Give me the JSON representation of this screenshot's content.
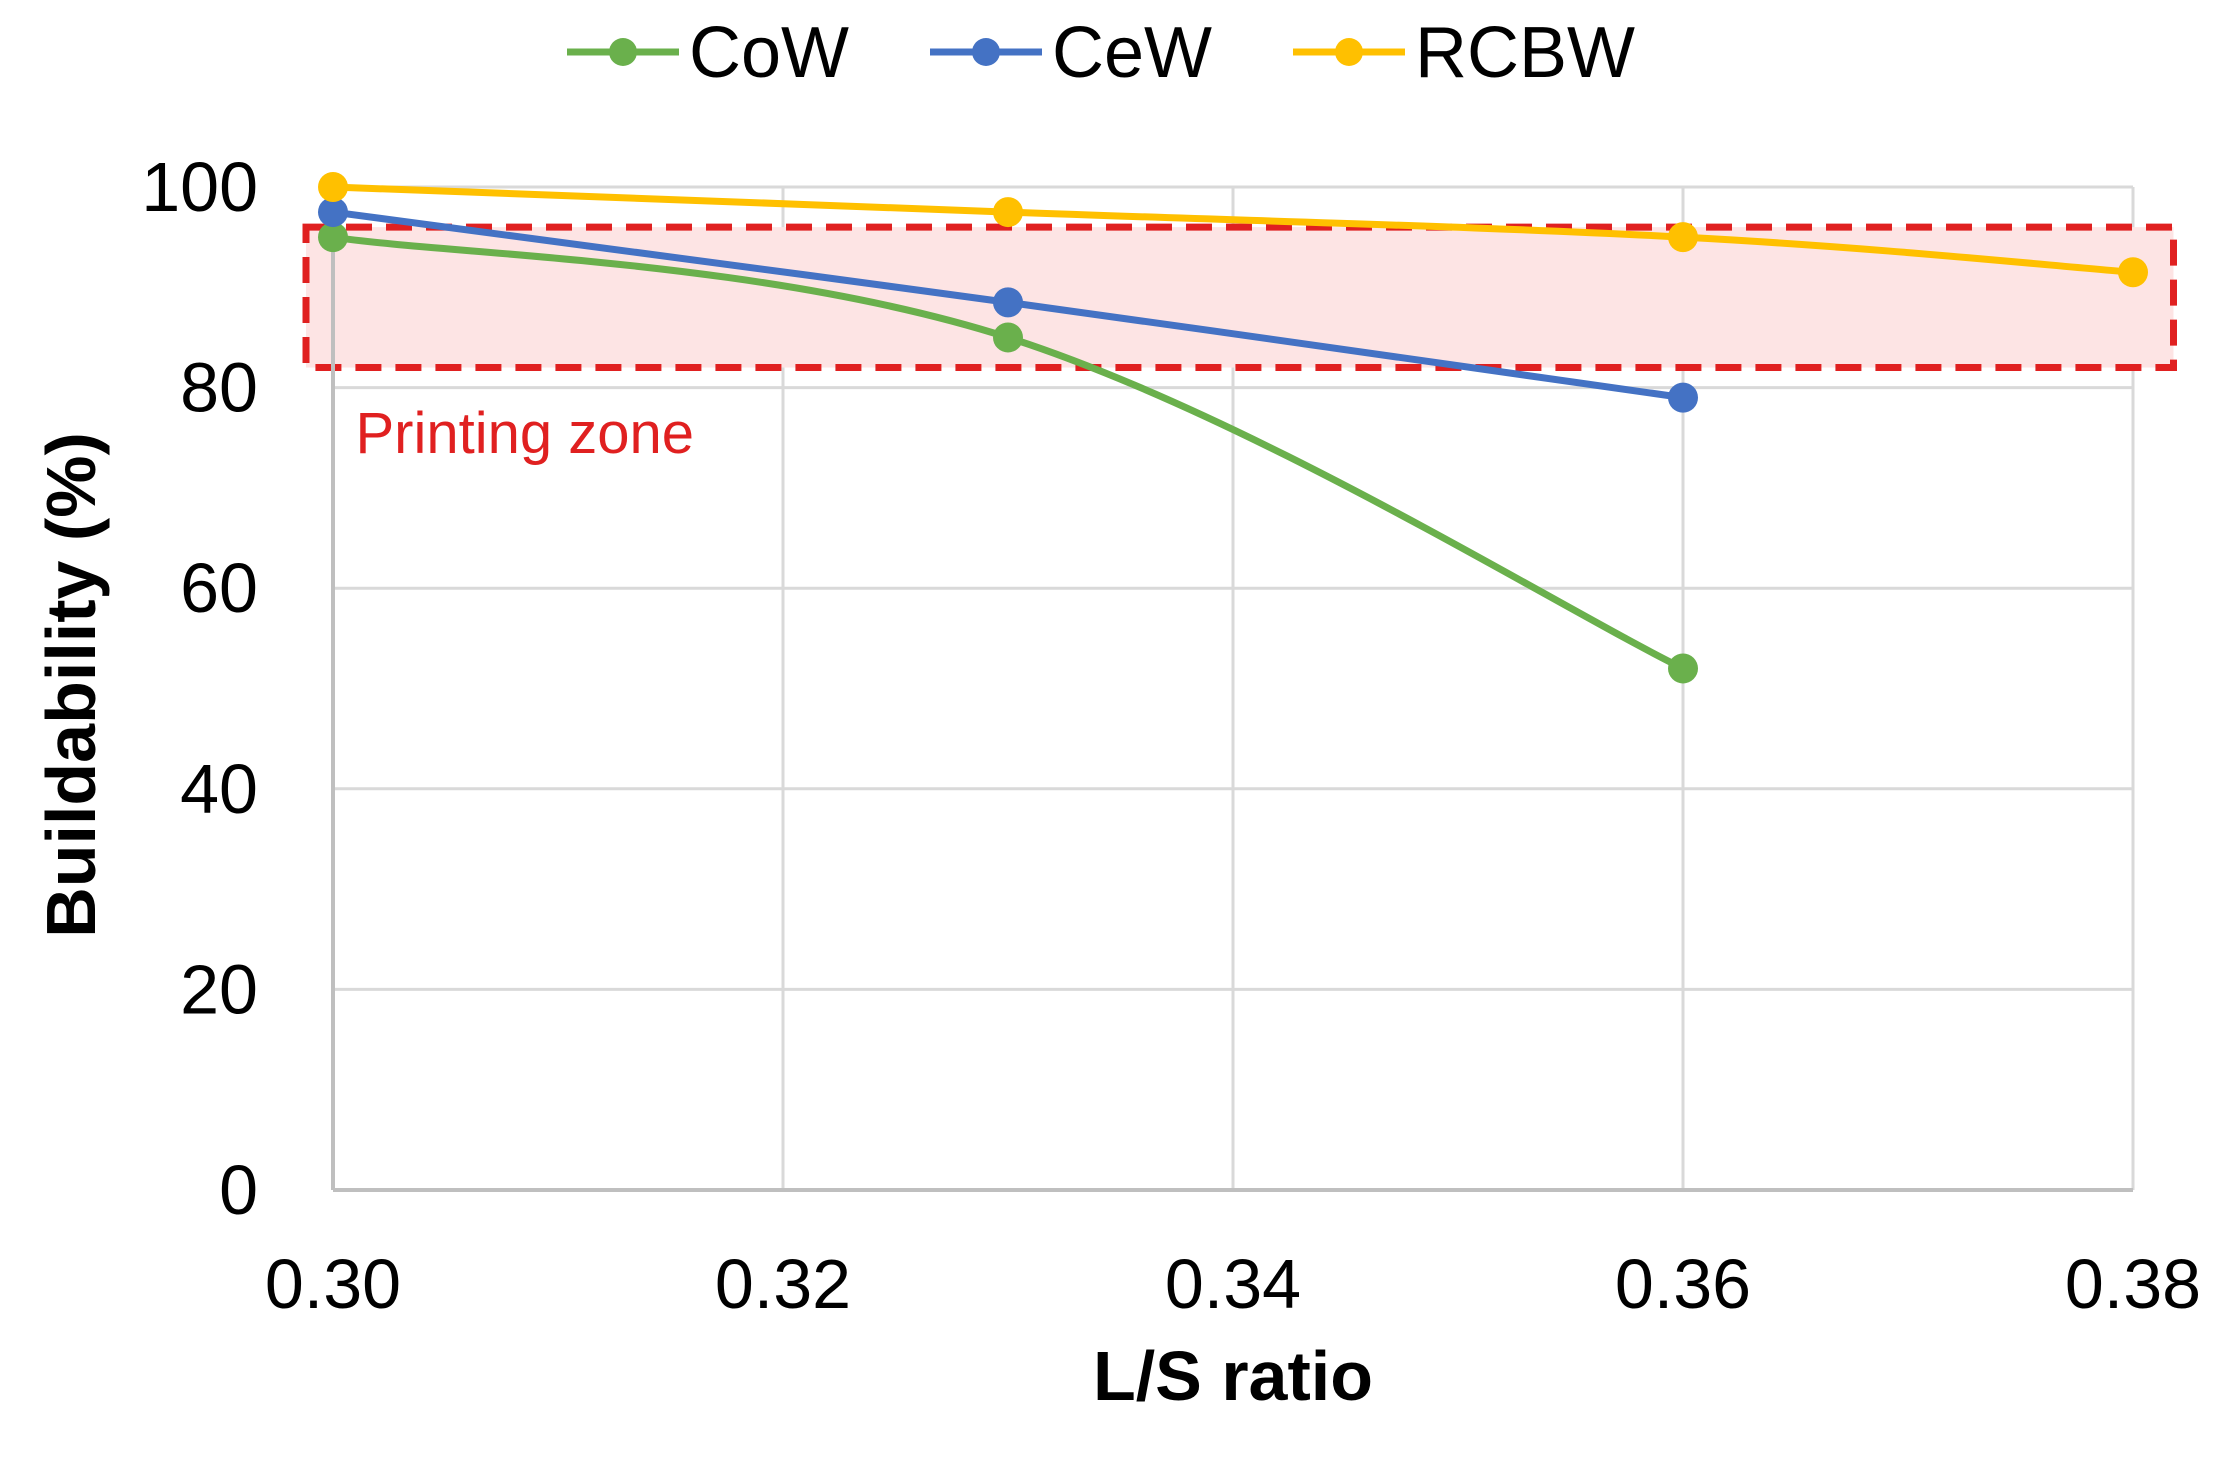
{
  "chart_data": {
    "type": "line",
    "title": "",
    "xlabel": "L/S ratio",
    "ylabel": "Buildability (%)",
    "xlim": [
      0.3,
      0.38
    ],
    "ylim": [
      0,
      100
    ],
    "x_ticks": [
      "0.30",
      "0.32",
      "0.34",
      "0.36",
      "0.38"
    ],
    "y_ticks": [
      "0",
      "20",
      "40",
      "60",
      "80",
      "100"
    ],
    "grid": true,
    "legend_position": "top",
    "series": [
      {
        "name": "CoW",
        "color": "#6ab04c",
        "x": [
          0.3,
          0.33,
          0.36
        ],
        "y": [
          95,
          85,
          52
        ]
      },
      {
        "name": "CeW",
        "color": "#4472c4",
        "x": [
          0.3,
          0.33,
          0.36
        ],
        "y": [
          97.5,
          88.5,
          79
        ]
      },
      {
        "name": "RCBW",
        "color": "#ffc000",
        "x": [
          0.3,
          0.33,
          0.36,
          0.38
        ],
        "y": [
          100,
          97.5,
          95,
          91.5
        ]
      }
    ],
    "annotations": [
      {
        "label": "Printing zone",
        "y_range": [
          82,
          96
        ],
        "x_range": [
          0.2988,
          0.3818
        ],
        "color": "#e02020",
        "fill": "#fde4e4"
      }
    ]
  }
}
